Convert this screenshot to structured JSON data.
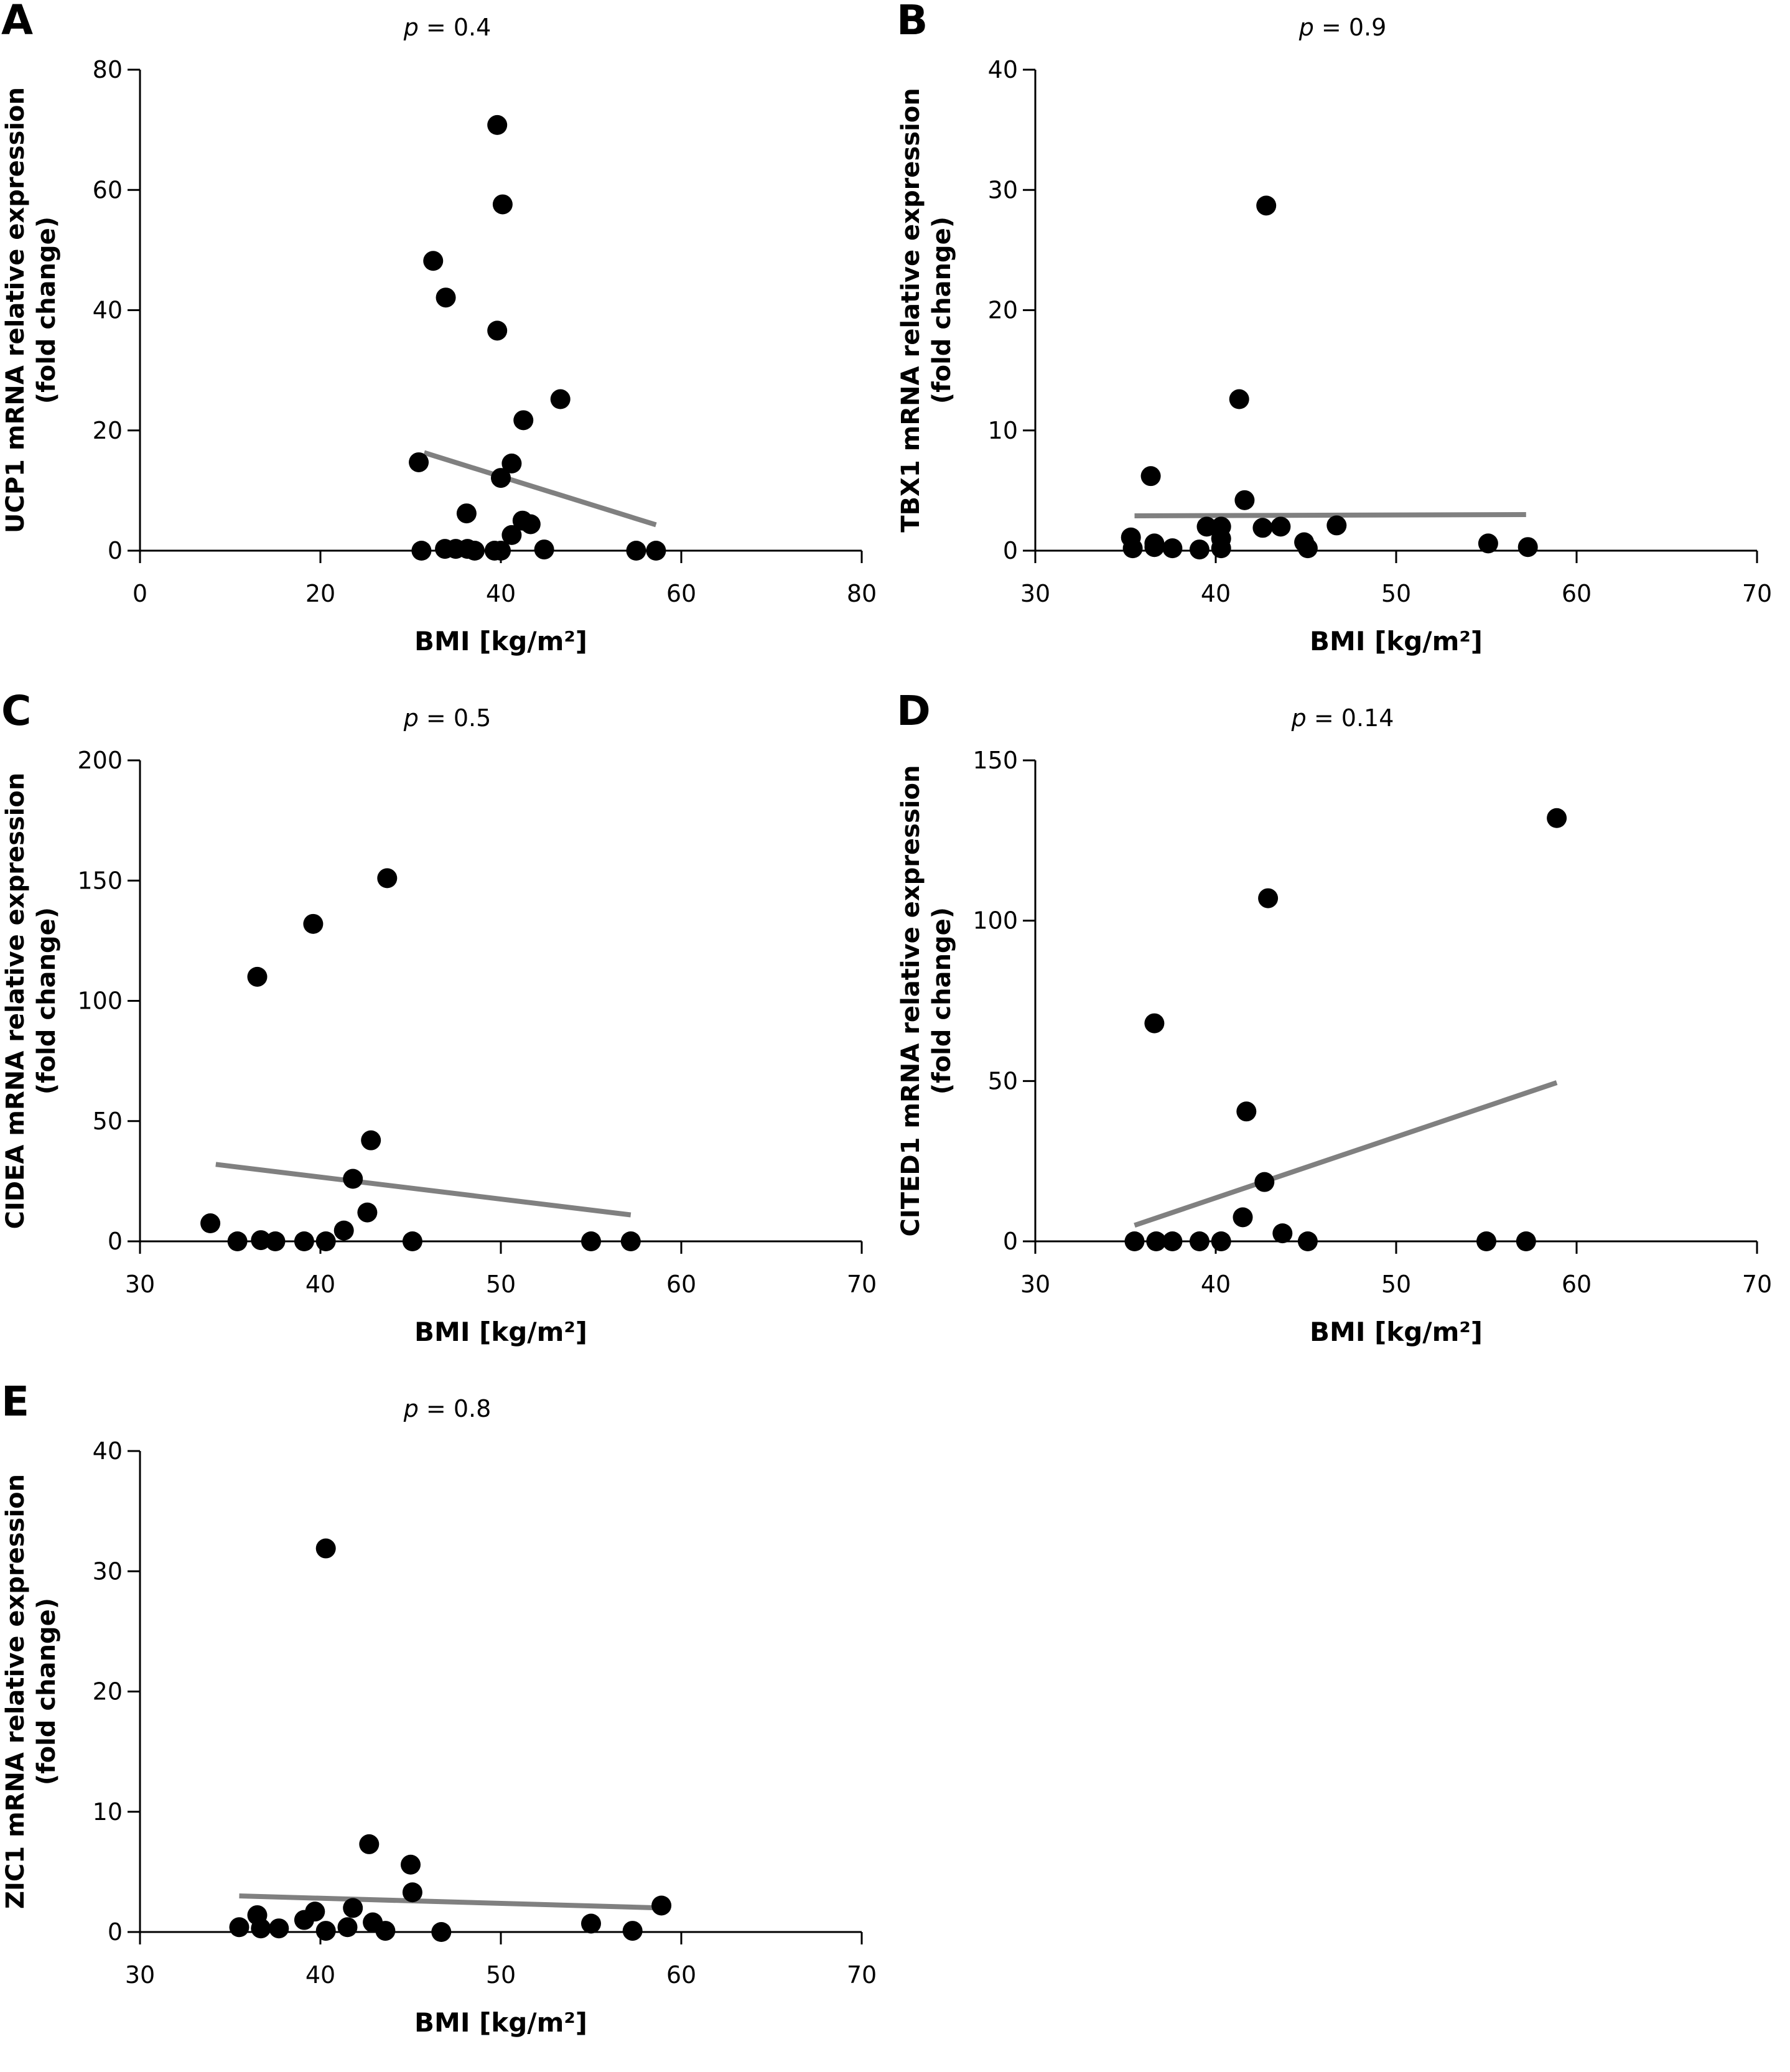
{
  "figure": {
    "panels_order": [
      "A",
      "B",
      "C",
      "D",
      "E"
    ]
  },
  "chart_data": [
    {
      "panel": "A",
      "type": "scatter",
      "title": "p = 0.4",
      "p_label": "p",
      "p_value_text": "= 0.4",
      "xlabel": "BMI [kg/m²]",
      "ylabel_line1": "UCP1 mRNA relative expression",
      "ylabel_line2": "(fold change)",
      "xlim": [
        0,
        80
      ],
      "ylim": [
        0,
        80
      ],
      "xticks": [
        0,
        20,
        40,
        60,
        80
      ],
      "yticks": [
        0,
        20,
        40,
        60,
        80
      ],
      "grid": false,
      "points": [
        [
          39.6,
          70.8
        ],
        [
          40.2,
          57.6
        ],
        [
          32.5,
          48.2
        ],
        [
          33.9,
          42.1
        ],
        [
          39.6,
          36.6
        ],
        [
          46.6,
          25.2
        ],
        [
          42.5,
          21.7
        ],
        [
          30.9,
          14.7
        ],
        [
          41.2,
          14.5
        ],
        [
          40.0,
          12.1
        ],
        [
          36.2,
          6.2
        ],
        [
          42.4,
          5.0
        ],
        [
          43.3,
          4.4
        ],
        [
          41.2,
          2.6
        ],
        [
          31.2,
          0.0
        ],
        [
          33.8,
          0.3
        ],
        [
          35.0,
          0.3
        ],
        [
          36.3,
          0.3
        ],
        [
          37.1,
          0.0
        ],
        [
          39.3,
          0.0
        ],
        [
          40.0,
          0.0
        ],
        [
          44.8,
          0.2
        ],
        [
          55.0,
          0.0
        ],
        [
          57.2,
          0.0
        ]
      ],
      "regression": [
        [
          31.5,
          16.3
        ],
        [
          57.2,
          4.3
        ]
      ]
    },
    {
      "panel": "B",
      "type": "scatter",
      "title": "p = 0.9",
      "p_label": "p",
      "p_value_text": "= 0.9",
      "xlabel": "BMI [kg/m²]",
      "ylabel_line1": "TBX1 mRNA relative expression",
      "ylabel_line2": "(fold change)",
      "xlim": [
        30,
        70
      ],
      "ylim": [
        0,
        40
      ],
      "xticks": [
        30,
        40,
        50,
        60,
        70
      ],
      "yticks": [
        0,
        10,
        20,
        30,
        40
      ],
      "grid": false,
      "points": [
        [
          42.8,
          28.7
        ],
        [
          41.3,
          12.6
        ],
        [
          36.4,
          6.2
        ],
        [
          41.6,
          4.2
        ],
        [
          46.7,
          2.1
        ],
        [
          39.5,
          2.0
        ],
        [
          40.3,
          2.0
        ],
        [
          43.6,
          2.0
        ],
        [
          42.6,
          1.9
        ],
        [
          35.3,
          1.1
        ],
        [
          40.3,
          1.0
        ],
        [
          44.9,
          0.7
        ],
        [
          36.6,
          0.6
        ],
        [
          55.1,
          0.6
        ],
        [
          36.6,
          0.3
        ],
        [
          57.3,
          0.3
        ],
        [
          35.4,
          0.2
        ],
        [
          37.6,
          0.2
        ],
        [
          40.3,
          0.2
        ],
        [
          45.1,
          0.2
        ],
        [
          39.1,
          0.1
        ]
      ],
      "regression": [
        [
          35.5,
          2.9
        ],
        [
          57.2,
          3.0
        ]
      ]
    },
    {
      "panel": "C",
      "type": "scatter",
      "title": "p = 0.5",
      "p_label": "p",
      "p_value_text": "= 0.5",
      "xlabel": "BMI [kg/m²]",
      "ylabel_line1": "CIDEA mRNA relative expression",
      "ylabel_line2": "(fold change)",
      "xlim": [
        30,
        70
      ],
      "ylim": [
        0,
        200
      ],
      "xticks": [
        30,
        40,
        50,
        60,
        70
      ],
      "yticks": [
        0,
        50,
        100,
        150,
        200
      ],
      "grid": false,
      "points": [
        [
          43.7,
          151
        ],
        [
          39.6,
          132
        ],
        [
          36.5,
          110
        ],
        [
          42.8,
          42
        ],
        [
          41.8,
          26
        ],
        [
          42.6,
          12
        ],
        [
          33.9,
          7.5
        ],
        [
          41.3,
          4.5
        ],
        [
          35.4,
          0
        ],
        [
          36.7,
          0.5
        ],
        [
          37.5,
          0
        ],
        [
          39.1,
          0
        ],
        [
          40.3,
          0
        ],
        [
          45.1,
          0
        ],
        [
          55.0,
          0
        ],
        [
          57.2,
          0
        ]
      ],
      "regression": [
        [
          34.2,
          32
        ],
        [
          57.2,
          11
        ]
      ]
    },
    {
      "panel": "D",
      "type": "scatter",
      "title": "p = 0.14",
      "p_label": "p",
      "p_value_text": "= 0.14",
      "xlabel": "BMI [kg/m²]",
      "ylabel_line1": "CITED1 mRNA relative expression",
      "ylabel_line2": "(fold change)",
      "xlim": [
        30,
        70
      ],
      "ylim": [
        0,
        150
      ],
      "xticks": [
        30,
        40,
        50,
        60,
        70
      ],
      "yticks": [
        0,
        50,
        100,
        150
      ],
      "grid": false,
      "points": [
        [
          58.9,
          132
        ],
        [
          42.9,
          107
        ],
        [
          36.6,
          68
        ],
        [
          41.7,
          40.5
        ],
        [
          42.7,
          18.5
        ],
        [
          41.5,
          7.5
        ],
        [
          43.7,
          2.5
        ],
        [
          35.5,
          0
        ],
        [
          36.7,
          0
        ],
        [
          37.6,
          0
        ],
        [
          39.1,
          0
        ],
        [
          40.3,
          0
        ],
        [
          45.1,
          0
        ],
        [
          55.0,
          0
        ],
        [
          57.2,
          0
        ]
      ],
      "regression": [
        [
          35.5,
          5
        ],
        [
          58.9,
          49.5
        ]
      ]
    },
    {
      "panel": "E",
      "type": "scatter",
      "title": "p = 0.8",
      "p_label": "p",
      "p_value_text": "= 0.8",
      "xlabel": "BMI [kg/m²]",
      "ylabel_line1": "ZIC1 mRNA relative expression",
      "ylabel_line2": "(fold change)",
      "xlim": [
        30,
        70
      ],
      "ylim": [
        0,
        40
      ],
      "xticks": [
        30,
        40,
        50,
        60,
        70
      ],
      "yticks": [
        0,
        10,
        20,
        30,
        40
      ],
      "grid": false,
      "points": [
        [
          40.3,
          31.9
        ],
        [
          42.7,
          7.3
        ],
        [
          45.0,
          5.6
        ],
        [
          45.1,
          3.3
        ],
        [
          58.9,
          2.2
        ],
        [
          41.8,
          2.0
        ],
        [
          39.7,
          1.7
        ],
        [
          36.5,
          1.4
        ],
        [
          39.1,
          1.0
        ],
        [
          42.9,
          0.8
        ],
        [
          55.0,
          0.7
        ],
        [
          35.5,
          0.4
        ],
        [
          36.7,
          0.3
        ],
        [
          37.7,
          0.3
        ],
        [
          41.5,
          0.4
        ],
        [
          40.3,
          0.1
        ],
        [
          43.6,
          0.1
        ],
        [
          46.7,
          0.0
        ],
        [
          57.3,
          0.1
        ]
      ],
      "regression": [
        [
          35.5,
          3.0
        ],
        [
          58.9,
          2.0
        ]
      ]
    }
  ],
  "colors": {
    "points": "#000000",
    "regression": "#808080",
    "axes": "#000000"
  }
}
